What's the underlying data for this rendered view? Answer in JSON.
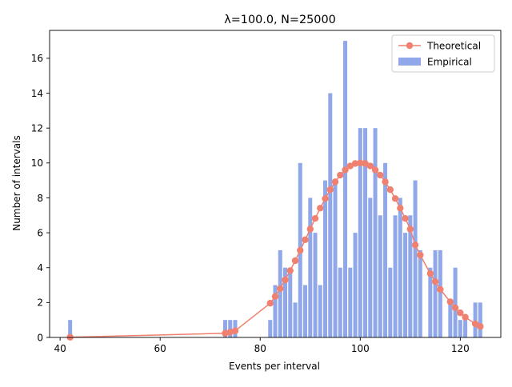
{
  "chart_data": {
    "type": "bar",
    "title": "λ=100.0, N=25000",
    "xlabel": "Events per interval",
    "ylabel": "Number of intervals",
    "xlim": [
      37.9,
      128.1
    ],
    "ylim": [
      0,
      17.6
    ],
    "xticks": [
      40,
      60,
      80,
      100,
      120
    ],
    "yticks": [
      0,
      2,
      4,
      6,
      8,
      10,
      12,
      14,
      16
    ],
    "grid": false,
    "legend_position": "top-right",
    "series": [
      {
        "name": "Empirical",
        "kind": "bar",
        "color": "#90A8EA",
        "x": [
          42,
          73,
          74,
          75,
          82,
          83,
          84,
          85,
          86,
          87,
          88,
          89,
          90,
          91,
          92,
          93,
          94,
          95,
          96,
          97,
          98,
          99,
          100,
          101,
          102,
          103,
          104,
          105,
          106,
          107,
          108,
          109,
          110,
          111,
          112,
          114,
          115,
          116,
          118,
          119,
          120,
          121,
          123,
          124
        ],
        "values": [
          1,
          1,
          1,
          1,
          1,
          3,
          5,
          4,
          4,
          2,
          10,
          3,
          8,
          6,
          3,
          9,
          14,
          9,
          4,
          17,
          4,
          6,
          12,
          12,
          8,
          12,
          7,
          10,
          4,
          7,
          8,
          6,
          7,
          9,
          5,
          4,
          5,
          5,
          2,
          4,
          1,
          1,
          2,
          2
        ]
      },
      {
        "name": "Theoretical",
        "kind": "line",
        "color": "#F08070",
        "x": [
          42,
          73,
          74,
          75,
          82,
          83,
          84,
          85,
          86,
          87,
          88,
          89,
          90,
          91,
          92,
          93,
          94,
          95,
          96,
          97,
          98,
          99,
          100,
          101,
          102,
          103,
          104,
          105,
          106,
          107,
          108,
          109,
          110,
          111,
          112,
          114,
          115,
          116,
          118,
          119,
          120,
          121,
          123,
          124
        ],
        "values": [
          0.01,
          0.24,
          0.3,
          0.38,
          1.96,
          2.35,
          2.8,
          3.3,
          3.83,
          4.4,
          4.99,
          5.6,
          6.21,
          6.82,
          7.41,
          7.96,
          8.47,
          8.92,
          9.3,
          9.6,
          9.83,
          9.97,
          10.0,
          9.97,
          9.83,
          9.6,
          9.3,
          8.92,
          8.47,
          7.96,
          7.41,
          6.82,
          6.21,
          5.3,
          4.72,
          3.66,
          3.2,
          2.75,
          2.04,
          1.7,
          1.41,
          1.16,
          0.78,
          0.63
        ]
      }
    ]
  }
}
